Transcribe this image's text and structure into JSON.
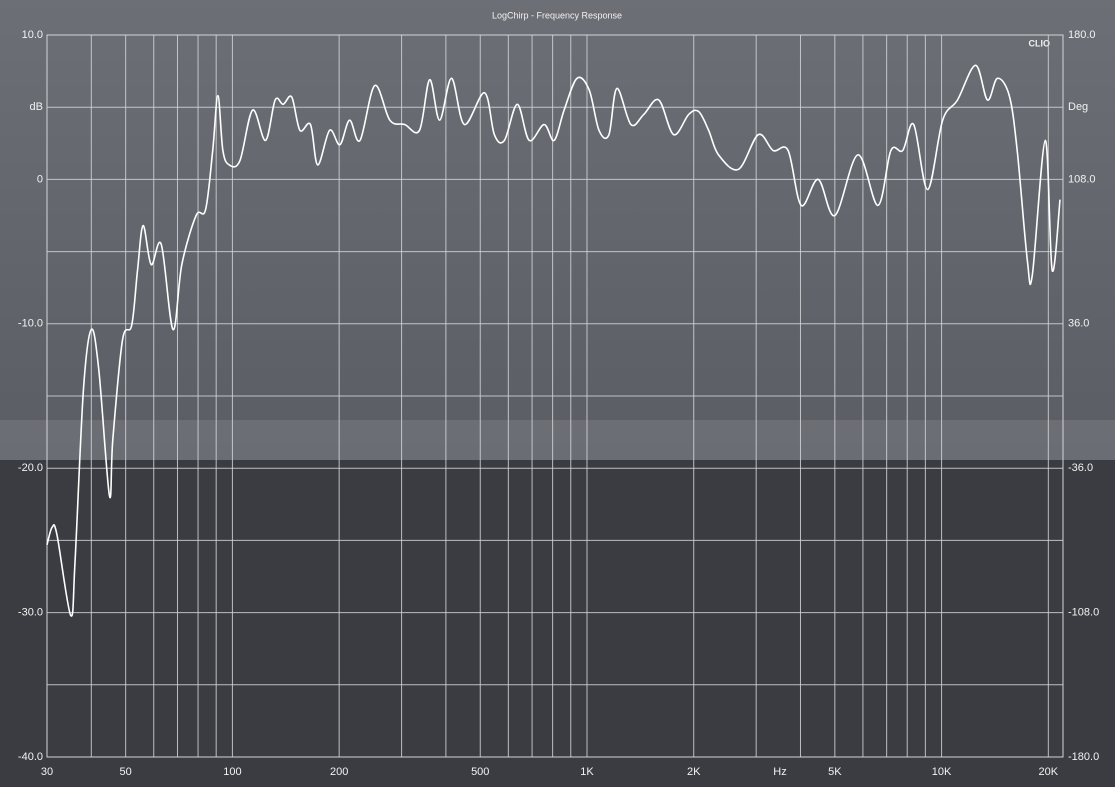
{
  "chart_data": {
    "type": "line",
    "title": "LogChirp - Frequency Response",
    "brand": "CLIO",
    "xlabel": "Hz",
    "x": [
      30,
      31,
      32,
      35,
      36,
      38,
      40,
      42,
      45,
      46,
      49,
      52,
      54,
      56,
      59,
      63,
      68,
      72,
      79,
      84,
      88,
      91,
      94,
      98,
      105,
      114,
      124,
      132,
      139,
      147,
      155,
      166,
      174,
      188,
      201,
      214,
      229,
      252,
      278,
      306,
      337,
      360,
      384,
      415,
      451,
      514,
      548,
      585,
      636,
      687,
      757,
      808,
      862,
      937,
      1014,
      1081,
      1153,
      1214,
      1330,
      1446,
      1594,
      1755,
      1936,
      2065,
      2203,
      2349,
      2675,
      3042,
      3350,
      3691,
      4018,
      4487,
      5002,
      5805,
      6612,
      7194,
      7769,
      8344,
      9135,
      10070,
      11090,
      12470,
      13470,
      14370,
      15520,
      16340,
      17450,
      18030,
      19610,
      20510,
      21580
    ],
    "series": [
      {
        "color": "#ffffff",
        "values": [
          -25.3,
          -24.1,
          -24.6,
          -30.2,
          -26.4,
          -14.6,
          -10.4,
          -13.2,
          -21.9,
          -18.0,
          -11.1,
          -10.1,
          -6.3,
          -3.2,
          -5.9,
          -4.5,
          -10.4,
          -5.9,
          -2.5,
          -2.1,
          2.0,
          5.8,
          2.0,
          1.0,
          1.3,
          4.8,
          2.7,
          5.5,
          5.2,
          5.7,
          3.4,
          3.8,
          1.0,
          3.4,
          2.4,
          4.1,
          2.7,
          6.5,
          4.1,
          3.8,
          3.4,
          6.9,
          4.1,
          7.0,
          3.8,
          6.0,
          3.1,
          2.7,
          5.2,
          2.7,
          3.8,
          2.7,
          4.8,
          7.0,
          6.2,
          3.4,
          3.1,
          6.3,
          3.8,
          4.5,
          5.5,
          3.1,
          4.5,
          4.7,
          3.4,
          1.7,
          0.7,
          3.1,
          2.0,
          2.0,
          -1.8,
          0,
          -2.5,
          1.7,
          -1.8,
          2.0,
          2.0,
          3.8,
          -0.7,
          4.1,
          5.5,
          7.9,
          5.5,
          7.0,
          5.8,
          2.0,
          -5.6,
          -6.6,
          2.7,
          -6.3,
          -1.4
        ]
      }
    ],
    "xlog": true,
    "xlim": [
      30,
      22000
    ],
    "xticks": [
      30,
      50,
      100,
      200,
      500,
      {
        "value": 1000,
        "label": "1K"
      },
      {
        "value": 2000,
        "label": "2K"
      },
      {
        "value": 5000,
        "label": "5K"
      },
      {
        "value": 10000,
        "label": "10K"
      },
      {
        "value": 20000,
        "label": "20K"
      }
    ],
    "xminor": [
      40,
      60,
      70,
      80,
      90,
      300,
      400,
      600,
      700,
      800,
      900,
      3000,
      4000,
      6000,
      7000,
      8000,
      9000
    ],
    "ylim": [
      -40,
      10
    ],
    "yticks": [
      {
        "value": 10,
        "label": "10.0"
      },
      {
        "value": 5,
        "label": "dB"
      },
      0,
      {
        "value": -10,
        "label": "-10.0"
      },
      {
        "value": -20,
        "label": "-20.0"
      },
      {
        "value": -30,
        "label": "-30.0"
      },
      {
        "value": -40,
        "label": "-40.0"
      }
    ],
    "yminor": [
      -5,
      -15,
      -25,
      -35
    ],
    "y2lim": [
      -180,
      180
    ],
    "y2ticks": [
      {
        "value": 180,
        "label": "180.0"
      },
      {
        "value": 144,
        "label": "Deg"
      },
      {
        "value": 108,
        "label": "108.0"
      },
      {
        "value": 36,
        "label": "36.0"
      },
      {
        "value": -36,
        "label": "-36.0"
      },
      {
        "value": -108,
        "label": "-108.0"
      },
      {
        "value": -180,
        "label": "-180.0"
      }
    ],
    "grid": true
  }
}
